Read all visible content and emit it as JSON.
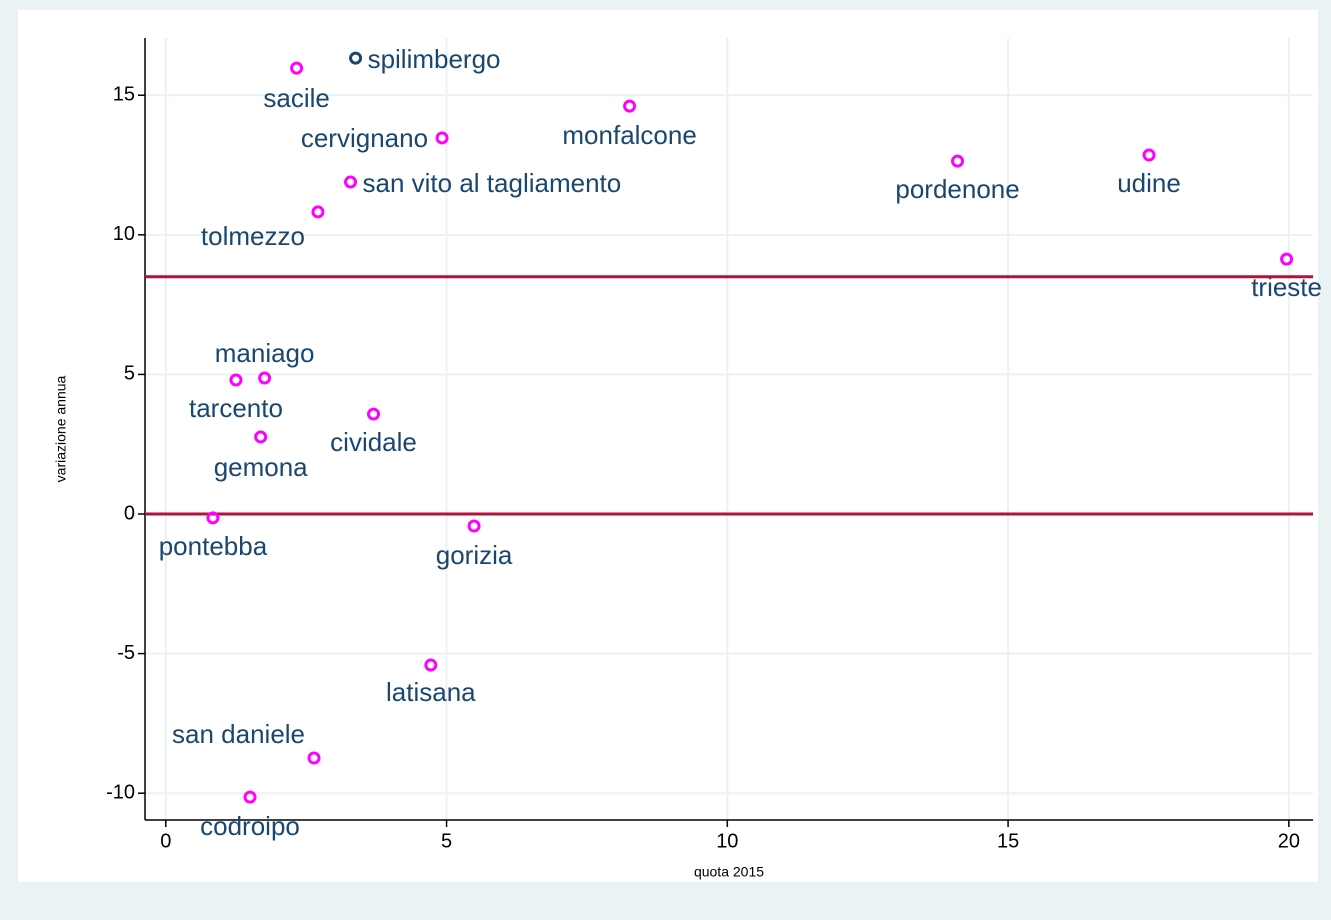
{
  "chart_data": {
    "type": "scatter",
    "x_label": "quota 2015",
    "y_label": "variazione annua",
    "labels": [
      "spilimbergo",
      "sacile",
      "cervignano",
      "monfalcone",
      "san vito al tagliamento",
      "tolmezzo",
      "pordenone",
      "udine",
      "trieste",
      "maniago",
      "tarcento",
      "cividale",
      "gemona",
      "pontebba",
      "gorizia",
      "latisana",
      "san daniele",
      "codroipo"
    ],
    "x": [
      3.38,
      2.33,
      4.92,
      8.26,
      3.29,
      2.71,
      14.1,
      17.51,
      19.96,
      1.76,
      1.25,
      3.7,
      1.69,
      0.84,
      5.49,
      4.72,
      2.64,
      1.5
    ],
    "y": [
      16.33,
      15.97,
      13.47,
      14.61,
      11.89,
      10.82,
      12.64,
      12.86,
      9.13,
      4.87,
      4.8,
      3.58,
      2.76,
      -0.14,
      -0.43,
      -5.41,
      -8.74,
      -10.14
    ],
    "colors": [
      "#1a476f",
      "#ff00ff",
      "#ff00ff",
      "#ff00ff",
      "#ff00ff",
      "#ff00ff",
      "#ff00ff",
      "#ff00ff",
      "#ff00ff",
      "#ff00ff",
      "#ff00ff",
      "#ff00ff",
      "#ff00ff",
      "#ff00ff",
      "#ff00ff",
      "#ff00ff",
      "#ff00ff",
      "#ff00ff"
    ],
    "hlines": [
      8.5,
      0
    ],
    "hline_color": "#b0123a",
    "xlim": [
      -0.37,
      20.43
    ],
    "ylim": [
      -10.96,
      17.05
    ],
    "xticks": [
      0,
      5,
      10,
      15,
      20
    ],
    "yticks": [
      -10,
      -5,
      0,
      5,
      10,
      15
    ],
    "grid": true
  }
}
